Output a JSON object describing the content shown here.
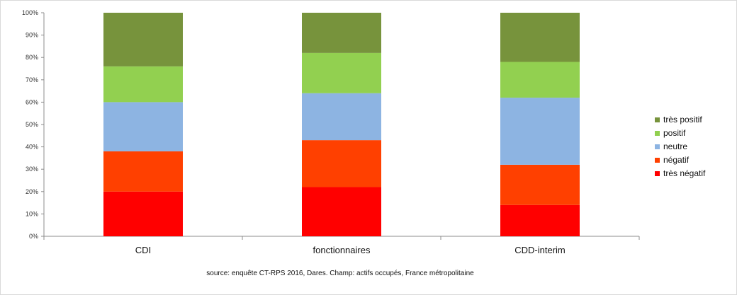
{
  "chart_data": {
    "type": "bar",
    "stacked": true,
    "categories": [
      "CDI",
      "fonctionnaires",
      "CDD-interim"
    ],
    "series": [
      {
        "name": "très négatif",
        "color": "#ff0000",
        "values": [
          20,
          22,
          14
        ]
      },
      {
        "name": "négatif",
        "color": "#ff4000",
        "values": [
          18,
          21,
          18
        ]
      },
      {
        "name": "neutre",
        "color": "#8db4e2",
        "values": [
          22,
          21,
          30
        ]
      },
      {
        "name": "positif",
        "color": "#92d050",
        "values": [
          16,
          18,
          16
        ]
      },
      {
        "name": "très positif",
        "color": "#77933c",
        "values": [
          24,
          18,
          22
        ]
      }
    ],
    "ylim": [
      0,
      100
    ],
    "yticks": [
      "0%",
      "10%",
      "20%",
      "30%",
      "40%",
      "50%",
      "60%",
      "70%",
      "80%",
      "90%",
      "100%"
    ],
    "legend_position": "right",
    "legend_order": [
      "très positif",
      "positif",
      "neutre",
      "négatif",
      "très négatif"
    ],
    "grid": false
  },
  "caption": "source: enquête CT-RPS 2016, Dares. Champ: actifs occupés, France métropolitaine"
}
